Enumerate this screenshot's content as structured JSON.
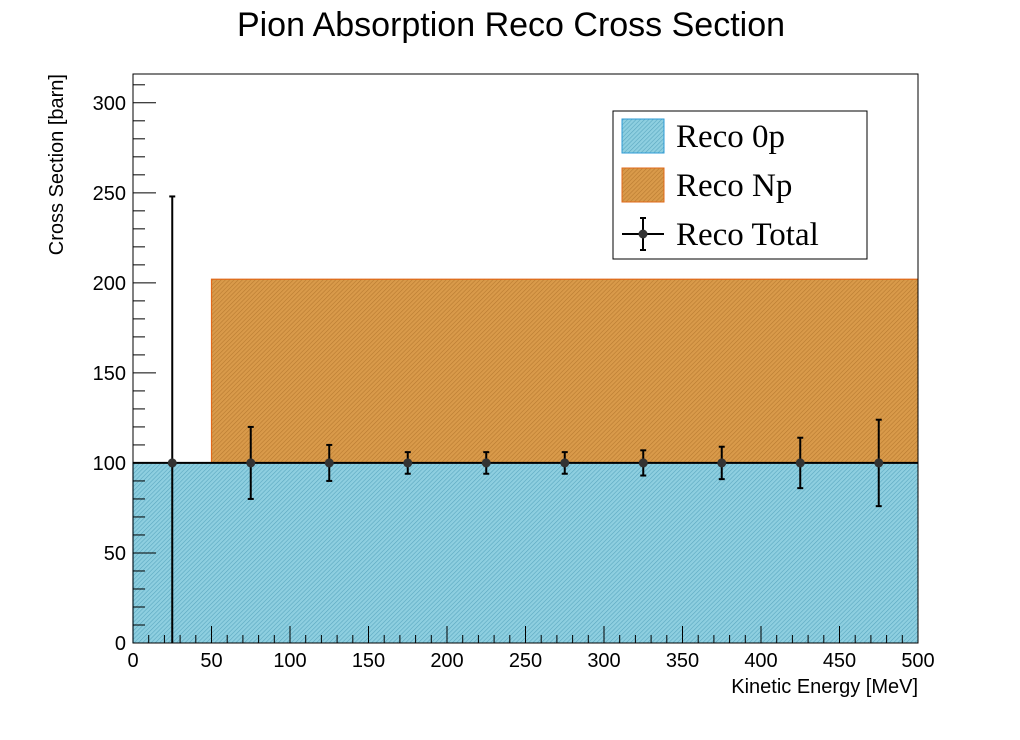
{
  "chart_data": {
    "type": "bar",
    "title": "Pion Absorption Reco Cross Section",
    "xlabel": "Kinetic Energy [MeV]",
    "ylabel": "Cross Section [barn]",
    "xlim": [
      0,
      500
    ],
    "ylim": [
      0,
      316
    ],
    "x_ticks": [
      0,
      50,
      100,
      150,
      200,
      250,
      300,
      350,
      400,
      450,
      500
    ],
    "y_ticks": [
      0,
      50,
      100,
      150,
      200,
      250,
      300
    ],
    "bin_width": 50,
    "stacked": true,
    "grid": false,
    "legend_position": "top-right",
    "colors": {
      "reco_0p": "#8ecfe0",
      "reco_0p_edge": "#2e9bd6",
      "reco_np": "#d99a4a",
      "reco_np_edge": "#e06a1a",
      "reco_total": "#000000"
    },
    "series": [
      {
        "name": "Reco 0p",
        "kind": "filled",
        "bin_low": [
          0,
          50,
          100,
          150,
          200,
          250,
          300,
          350,
          400,
          450
        ],
        "values": [
          100,
          100,
          100,
          100,
          100,
          100,
          100,
          100,
          100,
          100
        ]
      },
      {
        "name": "Reco Np",
        "kind": "filled",
        "bin_low": [
          0,
          50,
          100,
          150,
          200,
          250,
          300,
          350,
          400,
          450
        ],
        "values": [
          0,
          102,
          102,
          102,
          102,
          102,
          102,
          102,
          102,
          102
        ]
      },
      {
        "name": "Reco Total",
        "kind": "points",
        "x": [
          25,
          75,
          125,
          175,
          225,
          275,
          325,
          375,
          425,
          475
        ],
        "y": [
          100,
          100,
          100,
          100,
          100,
          100,
          100,
          100,
          100,
          100
        ],
        "err": [
          148,
          20,
          10,
          6,
          6,
          6,
          7,
          9,
          14,
          24
        ]
      }
    ]
  }
}
